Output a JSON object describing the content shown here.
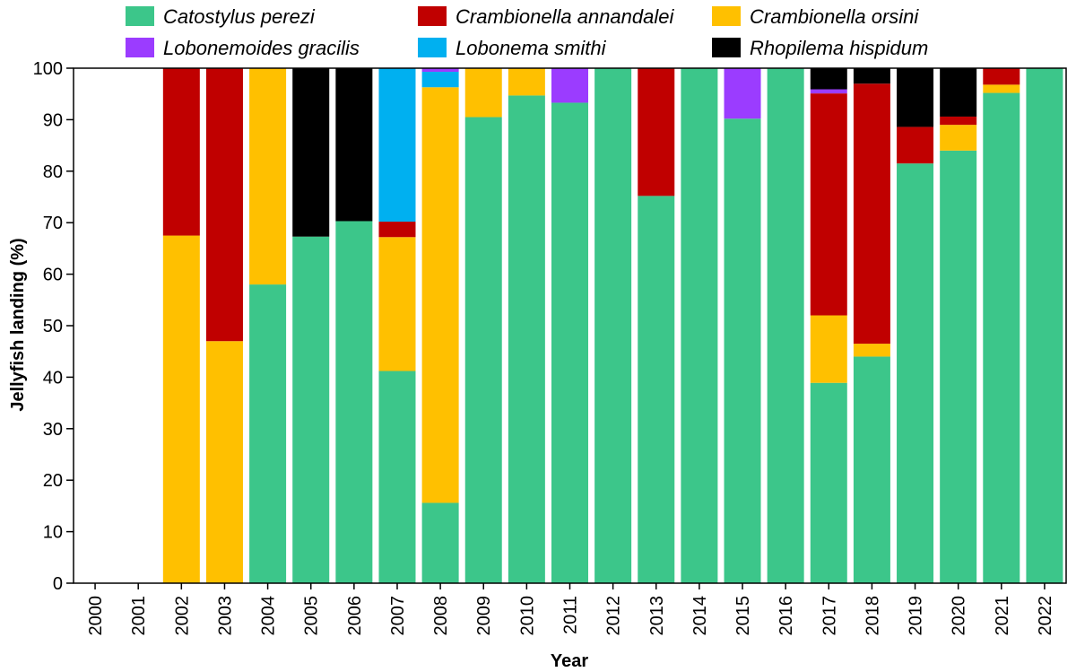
{
  "chart_data": {
    "type": "bar",
    "stacked": true,
    "title": "",
    "xlabel": "Year",
    "ylabel": "Jellyfish landing  (%)",
    "ylim": [
      0,
      100
    ],
    "yticks": [
      "0",
      "10",
      "20",
      "30",
      "40",
      "50",
      "60",
      "70",
      "80",
      "90",
      "100"
    ],
    "categories": [
      "2000",
      "2001",
      "2002",
      "2003",
      "2004",
      "2005",
      "2006",
      "2007",
      "2008",
      "2009",
      "2010",
      "2011",
      "2012",
      "2013",
      "2014",
      "2015",
      "2016",
      "2017",
      "2018",
      "2019",
      "2020",
      "2021",
      "2022"
    ],
    "legend_position": "top",
    "series": [
      {
        "name": "Catostylus perezi",
        "color": "#3CC68A",
        "values": [
          0,
          0,
          0,
          0,
          58,
          67.3,
          70.3,
          41.2,
          15.6,
          90.5,
          94.7,
          93.3,
          100,
          75.2,
          100,
          90.2,
          100,
          38.9,
          44,
          81.5,
          84,
          95.2,
          100
        ]
      },
      {
        "name": "Crambionella annandalei",
        "color": "#C00000",
        "values": [
          0,
          0,
          32.5,
          53,
          0,
          0,
          0,
          3,
          0,
          0,
          0,
          0,
          0,
          24.8,
          0,
          0,
          0,
          43.1,
          50.5,
          7.1,
          1.6,
          3.2,
          0
        ]
      },
      {
        "name": "Crambionella orsini",
        "color": "#FFC000",
        "values": [
          0,
          0,
          67.5,
          47,
          42,
          0,
          0,
          26,
          80.7,
          9.5,
          5.3,
          0,
          0,
          0,
          0,
          0,
          0,
          13.1,
          2.5,
          0,
          5,
          1.6,
          0
        ]
      },
      {
        "name": "Lobonemoides gracilis",
        "color": "#9B3CFF",
        "values": [
          0,
          0,
          0,
          0,
          0,
          0,
          0,
          0,
          0.7,
          0,
          0,
          6.7,
          0,
          0,
          0,
          9.8,
          0,
          0.8,
          0,
          0,
          0,
          0,
          0
        ]
      },
      {
        "name": "Lobonema smithi",
        "color": "#00B0F0",
        "values": [
          0,
          0,
          0,
          0,
          0,
          0,
          0,
          29.8,
          3,
          0,
          0,
          0,
          0,
          0,
          0,
          0,
          0,
          0,
          0,
          0,
          0,
          0,
          0
        ]
      },
      {
        "name": "Rhopilema hispidum",
        "color": "#000000",
        "values": [
          0,
          0,
          0,
          0,
          0,
          32.7,
          29.7,
          0,
          0,
          0,
          0,
          0,
          0,
          0,
          0,
          0,
          0,
          4.1,
          3,
          11.4,
          9.4,
          0,
          0
        ]
      }
    ],
    "stack_order_bottom_to_top": [
      "Catostylus perezi",
      "Crambionella orsini",
      "Crambionella annandalei",
      "Lobonema smithi",
      "Lobonemoides gracilis",
      "Rhopilema hispidum"
    ],
    "legend_order": [
      "Catostylus perezi",
      "Crambionella annandalei",
      "Crambionella orsini",
      "Lobonemoides gracilis",
      "Lobonema smithi",
      "Rhopilema hispidum"
    ]
  }
}
